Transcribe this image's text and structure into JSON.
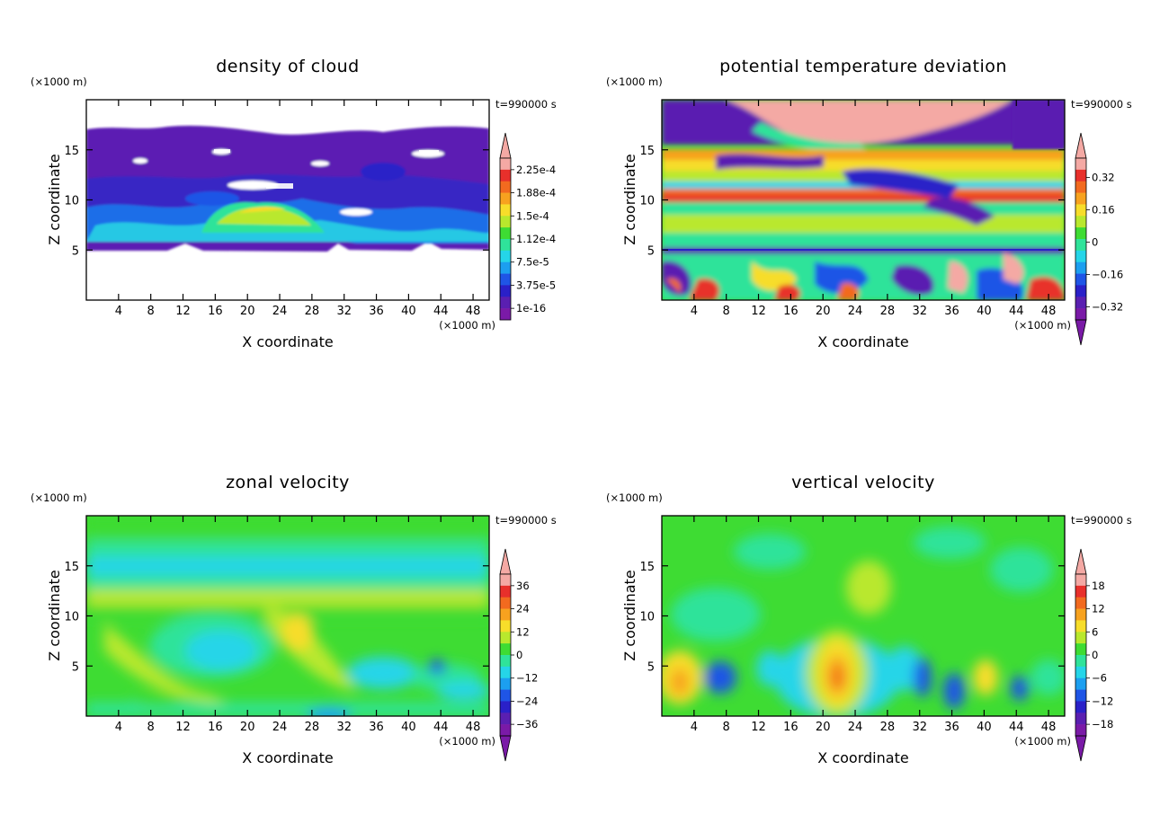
{
  "chart_data": [
    {
      "type": "heatmap",
      "title": "density of cloud",
      "xlabel": "X coordinate",
      "ylabel": "Z coordinate",
      "x_unit": "(×1000 m)",
      "y_unit": "(×1000 m)",
      "time_label": "t=990000 s",
      "xlim": [
        0,
        50
      ],
      "ylim": [
        0,
        20
      ],
      "x_ticks": [
        "4",
        "8",
        "12",
        "16",
        "20",
        "24",
        "28",
        "32",
        "36",
        "40",
        "44",
        "48"
      ],
      "y_ticks": [
        "5",
        "10",
        "15"
      ],
      "colorbar": {
        "labels": [
          "2.25e-4",
          "1.88e-4",
          "1.5e-4",
          "1.12e-4",
          "7.5e-5",
          "3.75e-5",
          "1e-16"
        ],
        "colors": [
          "#f4a9a4",
          "#e8302b",
          "#f26a1f",
          "#f7a21f",
          "#f7dd2a",
          "#b9e82d",
          "#3edc33",
          "#2fe39a",
          "#25d5e8",
          "#1c9ff0",
          "#1f55e6",
          "#2a20c8",
          "#5a1fb1",
          "#7a1aa7"
        ],
        "arrow_low": false,
        "arrow_high": true
      },
      "approx_fields": {
        "base_height": 5.2,
        "cloud_top": 17,
        "dense_bump_center_x": 22,
        "dense_bump_top": 9.3
      }
    },
    {
      "type": "heatmap",
      "title": "potential temperature deviation",
      "xlabel": "X coordinate",
      "ylabel": "Z coordinate",
      "x_unit": "(×1000 m)",
      "y_unit": "(×1000 m)",
      "time_label": "t=990000 s",
      "xlim": [
        0,
        50
      ],
      "ylim": [
        0,
        20
      ],
      "x_ticks": [
        "4",
        "8",
        "12",
        "16",
        "20",
        "24",
        "28",
        "32",
        "36",
        "40",
        "44",
        "48"
      ],
      "y_ticks": [
        "5",
        "10",
        "15"
      ],
      "colorbar": {
        "labels": [
          "0.32",
          "0.16",
          "0",
          "−0.16",
          "−0.32"
        ],
        "colors": [
          "#f4a9a4",
          "#e8302b",
          "#f26a1f",
          "#f7a21f",
          "#f7dd2a",
          "#b9e82d",
          "#3edc33",
          "#2fe39a",
          "#25d5e8",
          "#1c9ff0",
          "#1f55e6",
          "#2a20c8",
          "#5a1fb1",
          "#7a1aa7"
        ],
        "arrow_low": true,
        "arrow_high": true
      }
    },
    {
      "type": "heatmap",
      "title": "zonal velocity",
      "xlabel": "X coordinate",
      "ylabel": "Z coordinate",
      "x_unit": "(×1000 m)",
      "y_unit": "(×1000 m)",
      "time_label": "t=990000 s",
      "xlim": [
        0,
        50
      ],
      "ylim": [
        0,
        20
      ],
      "x_ticks": [
        "4",
        "8",
        "12",
        "16",
        "20",
        "24",
        "28",
        "32",
        "36",
        "40",
        "44",
        "48"
      ],
      "y_ticks": [
        "5",
        "10",
        "15"
      ],
      "colorbar": {
        "labels": [
          "36",
          "24",
          "12",
          "0",
          "−12",
          "−24",
          "−36"
        ],
        "colors": [
          "#f4a9a4",
          "#e8302b",
          "#f26a1f",
          "#f7a21f",
          "#f7dd2a",
          "#b9e82d",
          "#3edc33",
          "#2fe39a",
          "#25d5e8",
          "#1c9ff0",
          "#1f55e6",
          "#2a20c8",
          "#5a1fb1",
          "#7a1aa7"
        ],
        "arrow_low": true,
        "arrow_high": true
      }
    },
    {
      "type": "heatmap",
      "title": "vertical velocity",
      "xlabel": "X coordinate",
      "ylabel": "Z coordinate",
      "x_unit": "(×1000 m)",
      "y_unit": "(×1000 m)",
      "time_label": "t=990000 s",
      "xlim": [
        0,
        50
      ],
      "ylim": [
        0,
        20
      ],
      "x_ticks": [
        "4",
        "8",
        "12",
        "16",
        "20",
        "24",
        "28",
        "32",
        "36",
        "40",
        "44",
        "48"
      ],
      "y_ticks": [
        "5",
        "10",
        "15"
      ],
      "colorbar": {
        "labels": [
          "18",
          "12",
          "6",
          "0",
          "−6",
          "−12",
          "−18"
        ],
        "colors": [
          "#f4a9a4",
          "#e8302b",
          "#f26a1f",
          "#f7a21f",
          "#f7dd2a",
          "#b9e82d",
          "#3edc33",
          "#2fe39a",
          "#25d5e8",
          "#1c9ff0",
          "#1f55e6",
          "#2a20c8",
          "#5a1fb1",
          "#7a1aa7"
        ],
        "arrow_low": true,
        "arrow_high": true
      },
      "approx_fields": {
        "updraft_center_x": 22,
        "updraft_center_z": 4
      }
    }
  ]
}
